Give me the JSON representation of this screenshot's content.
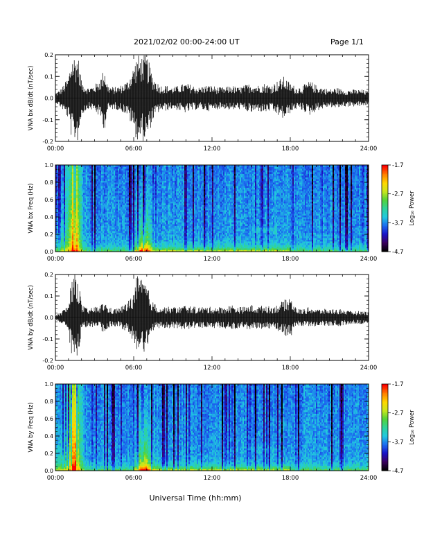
{
  "header": {
    "title": "2021/02/02  00:00-24:00 UT",
    "page_label": "Page 1/1"
  },
  "xlabel": "Universal Time (hh:mm)",
  "colors": {
    "waveform": "#000000",
    "colormap": [
      "#000000",
      "#3b0060",
      "#1a14c8",
      "#1c6cf0",
      "#21c8e0",
      "#2fd39b",
      "#52d33a",
      "#c8e61e",
      "#ffd700",
      "#ff7f00",
      "#ff0000"
    ]
  },
  "chart_data": [
    {
      "type": "line",
      "ylabel": "VNA bx dB/dt (nT/sec)",
      "x_ticks": [
        "00:00",
        "06:00",
        "12:00",
        "18:00",
        "24:00"
      ],
      "y_ticks": [
        "-0.2",
        "-0.1",
        "0.0",
        "0.1",
        "0.2"
      ],
      "xlim": [
        0,
        24
      ],
      "ylim": [
        -0.2,
        0.2
      ],
      "series": [
        {
          "x": [
            0,
            0.5,
            1,
            1.25,
            1.5,
            1.75,
            2,
            2.5,
            3,
            3.5,
            3.75,
            4,
            4.5,
            5,
            5.5,
            6,
            6.25,
            6.5,
            6.75,
            7,
            7.25,
            7.5,
            8,
            8.5,
            9,
            9.5,
            10,
            10.5,
            11,
            11.5,
            12,
            12.5,
            13,
            13.5,
            14,
            14.5,
            15,
            15.5,
            16,
            16.5,
            17,
            17.5,
            18,
            18.5,
            19,
            19.5,
            20,
            20.5,
            21,
            21.5,
            22,
            22.5,
            23,
            23.5,
            24
          ],
          "values": [
            0.02,
            0.05,
            0.1,
            0.2,
            0.2,
            0.2,
            0.08,
            0.05,
            0.06,
            0.1,
            0.15,
            0.06,
            0.05,
            0.06,
            0.08,
            0.15,
            0.2,
            0.2,
            0.2,
            0.2,
            0.15,
            0.1,
            0.06,
            0.06,
            0.05,
            0.06,
            0.07,
            0.06,
            0.05,
            0.06,
            0.06,
            0.05,
            0.05,
            0.06,
            0.05,
            0.06,
            0.07,
            0.06,
            0.07,
            0.06,
            0.08,
            0.1,
            0.07,
            0.05,
            0.06,
            0.08,
            0.06,
            0.05,
            0.04,
            0.05,
            0.04,
            0.04,
            0.04,
            0.04,
            0.03
          ]
        }
      ]
    },
    {
      "type": "heatmap",
      "ylabel": "VNA bx Freq (Hz)",
      "x_ticks": [
        "00:00",
        "06:00",
        "12:00",
        "18:00",
        "24:00"
      ],
      "y_ticks": [
        "0.0",
        "0.2",
        "0.4",
        "0.6",
        "0.8",
        "1.0"
      ],
      "xlim": [
        0,
        24
      ],
      "ylim": [
        0,
        1.0
      ],
      "colorbar": {
        "label": "Log₁₀ Power",
        "ticks": [
          "-1.7",
          "-2.7",
          "-3.7",
          "-4.7"
        ],
        "range": [
          -4.7,
          -1.7
        ]
      }
    },
    {
      "type": "line",
      "ylabel": "VNA by dB/dt (nT/sec)",
      "x_ticks": [
        "00:00",
        "06:00",
        "12:00",
        "18:00",
        "24:00"
      ],
      "y_ticks": [
        "-0.2",
        "-0.1",
        "0.0",
        "0.1",
        "0.2"
      ],
      "xlim": [
        0,
        24
      ],
      "ylim": [
        -0.2,
        0.2
      ],
      "series": [
        {
          "x": [
            0,
            0.5,
            1,
            1.25,
            1.5,
            1.75,
            2,
            2.5,
            3,
            3.5,
            3.75,
            4,
            4.5,
            5,
            5.5,
            6,
            6.25,
            6.5,
            6.75,
            7,
            7.25,
            7.5,
            8,
            8.5,
            9,
            9.5,
            10,
            10.5,
            11,
            11.5,
            12,
            12.5,
            13,
            13.5,
            14,
            14.5,
            15,
            15.5,
            16,
            16.5,
            17,
            17.5,
            18,
            18.5,
            19,
            19.5,
            20,
            20.5,
            21,
            21.5,
            22,
            22.5,
            23,
            23.5,
            24
          ],
          "values": [
            0.01,
            0.03,
            0.06,
            0.2,
            0.2,
            0.2,
            0.06,
            0.04,
            0.05,
            0.06,
            0.08,
            0.05,
            0.04,
            0.05,
            0.07,
            0.12,
            0.2,
            0.18,
            0.18,
            0.16,
            0.1,
            0.07,
            0.05,
            0.05,
            0.05,
            0.05,
            0.06,
            0.05,
            0.05,
            0.05,
            0.05,
            0.05,
            0.05,
            0.06,
            0.05,
            0.05,
            0.06,
            0.05,
            0.06,
            0.05,
            0.06,
            0.08,
            0.1,
            0.04,
            0.04,
            0.05,
            0.04,
            0.04,
            0.04,
            0.04,
            0.04,
            0.03,
            0.03,
            0.03,
            0.03
          ]
        }
      ]
    },
    {
      "type": "heatmap",
      "ylabel": "VNA by Freq (Hz)",
      "x_ticks": [
        "00:00",
        "06:00",
        "12:00",
        "18:00",
        "24:00"
      ],
      "y_ticks": [
        "0.0",
        "0.2",
        "0.4",
        "0.6",
        "0.8",
        "1.0"
      ],
      "xlim": [
        0,
        24
      ],
      "ylim": [
        0,
        1.0
      ],
      "colorbar": {
        "label": "Log₁₀ Power",
        "ticks": [
          "-1.7",
          "-2.7",
          "-3.7",
          "-4.7"
        ],
        "range": [
          -4.7,
          -1.7
        ]
      }
    }
  ]
}
